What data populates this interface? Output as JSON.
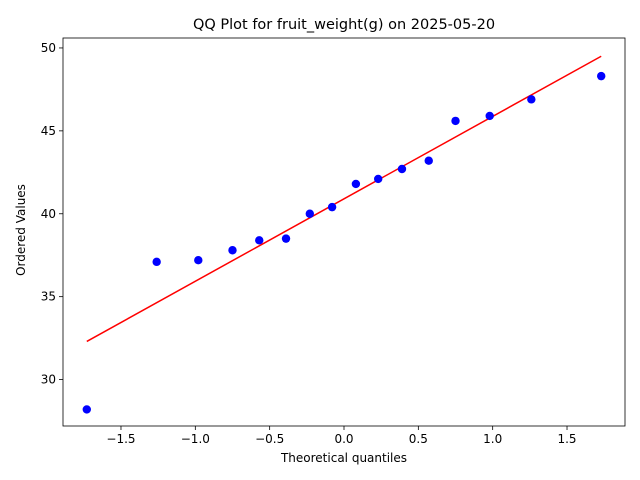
{
  "chart_data": {
    "type": "scatter",
    "title": "QQ Plot for fruit_weight(g) on 2025-05-20",
    "xlabel": "Theoretical quantiles",
    "ylabel": "Ordered Values",
    "xlim": [
      -1.89,
      1.89
    ],
    "ylim": [
      27.2,
      50.6
    ],
    "xticks": [
      -1.5,
      -1.0,
      -0.5,
      0.0,
      0.5,
      1.0,
      1.5
    ],
    "xtick_labels": [
      "−1.5",
      "−1.0",
      "−0.5",
      "0.0",
      "0.5",
      "1.0",
      "1.5"
    ],
    "yticks": [
      30,
      35,
      40,
      45,
      50
    ],
    "ytick_labels": [
      "30",
      "35",
      "40",
      "45",
      "50"
    ],
    "grid": false,
    "points": {
      "color": "#0000ff",
      "x": [
        -1.73,
        -1.26,
        -0.98,
        -0.75,
        -0.57,
        -0.39,
        -0.23,
        -0.08,
        0.08,
        0.23,
        0.39,
        0.57,
        0.75,
        0.98,
        1.26,
        1.73
      ],
      "y": [
        28.2,
        37.1,
        37.2,
        37.8,
        38.4,
        38.5,
        40.0,
        40.4,
        41.8,
        42.1,
        42.7,
        43.2,
        45.6,
        45.9,
        46.9,
        48.3
      ]
    },
    "fit_line": {
      "color": "#ff0000",
      "x": [
        -1.73,
        1.73
      ],
      "y": [
        32.3,
        49.5
      ]
    }
  }
}
